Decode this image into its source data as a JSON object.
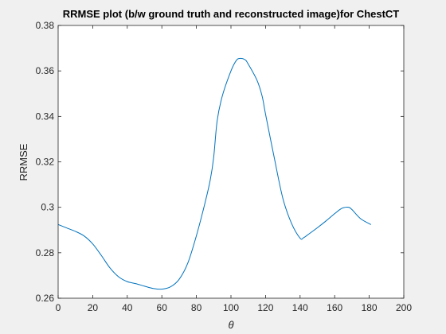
{
  "chart_data": {
    "type": "line",
    "title": "RRMSE plot (b/w ground truth and reconstructed image)for ChestCT",
    "xlabel": "θ",
    "ylabel": "RRMSE",
    "xlim": [
      0,
      200
    ],
    "ylim": [
      0.26,
      0.38
    ],
    "xticks": [
      0,
      20,
      40,
      60,
      80,
      100,
      120,
      140,
      160,
      180,
      200
    ],
    "yticks": [
      0.26,
      0.28,
      0.3,
      0.32,
      0.34,
      0.36,
      0.38
    ],
    "xtick_labels": [
      "0",
      "20",
      "40",
      "60",
      "80",
      "100",
      "120",
      "140",
      "160",
      "180",
      "200"
    ],
    "ytick_labels": [
      "0.26",
      "0.28",
      "0.3",
      "0.32",
      "0.34",
      "0.36",
      "0.38"
    ],
    "grid": false,
    "line_color": "#0072bd",
    "series": [
      {
        "x": [
          0,
          5,
          10,
          15,
          20,
          25,
          30,
          35,
          40,
          45,
          50,
          55,
          60,
          65,
          70,
          75,
          80,
          85,
          88,
          90,
          92,
          95,
          100,
          103,
          105,
          108,
          110,
          115,
          118,
          120,
          125,
          130,
          135,
          140,
          142,
          145,
          150,
          155,
          160,
          163,
          165,
          168,
          170,
          175,
          181
        ],
        "y": [
          0.2924,
          0.2909,
          0.2894,
          0.2874,
          0.2839,
          0.2788,
          0.2733,
          0.2694,
          0.2673,
          0.2664,
          0.2653,
          0.2643,
          0.264,
          0.265,
          0.2683,
          0.2754,
          0.2875,
          0.302,
          0.312,
          0.322,
          0.338,
          0.349,
          0.36,
          0.3645,
          0.3655,
          0.365,
          0.363,
          0.356,
          0.349,
          0.341,
          0.322,
          0.304,
          0.293,
          0.2864,
          0.2866,
          0.2882,
          0.291,
          0.294,
          0.2972,
          0.299,
          0.2998,
          0.3,
          0.299,
          0.295,
          0.2924
        ]
      }
    ]
  }
}
